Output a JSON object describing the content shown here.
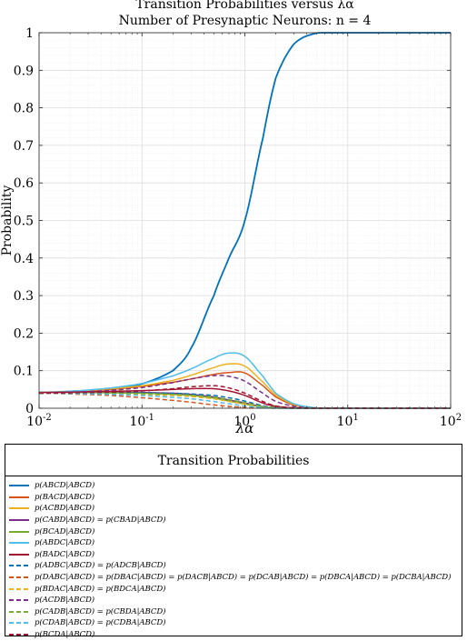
{
  "chart_data": {
    "type": "line",
    "title": "Transition Probabilities versus λα",
    "subtitle": "Number of Presynaptic Neurons: n = 4",
    "xlabel": "λα",
    "ylabel": "Probability",
    "xscale": "log",
    "xlim": [
      0.01,
      100
    ],
    "ylim": [
      0,
      1
    ],
    "x_ticks": [
      0.01,
      0.1,
      1,
      10,
      100
    ],
    "x_tick_labels": [
      {
        "base": "10",
        "exp": "-2"
      },
      {
        "base": "10",
        "exp": "-1"
      },
      {
        "base": "10",
        "exp": "0"
      },
      {
        "base": "10",
        "exp": "1"
      },
      {
        "base": "10",
        "exp": "2"
      }
    ],
    "y_ticks": [
      0,
      0.1,
      0.2,
      0.3,
      0.4,
      0.5,
      0.6,
      0.7,
      0.8,
      0.9,
      1
    ],
    "y_tick_labels": [
      "0",
      "0.1",
      "0.2",
      "0.3",
      "0.4",
      "0.5",
      "0.6",
      "0.7",
      "0.8",
      "0.9",
      "1"
    ],
    "grid": true,
    "legend_position": "below the plot",
    "legend_title": "Transition Probabilities",
    "x": [
      0.01,
      0.02,
      0.05,
      0.1,
      0.2,
      0.3,
      0.5,
      0.7,
      1,
      1.5,
      2,
      3,
      5,
      10,
      100
    ],
    "series": [
      {
        "name": "p(ABCD|ABCD)",
        "color": "#0072BD",
        "style": "solid",
        "values": [
          0.042,
          0.045,
          0.052,
          0.065,
          0.1,
          0.16,
          0.3,
          0.4,
          0.5,
          0.72,
          0.88,
          0.97,
          0.999,
          1.0,
          1.0
        ]
      },
      {
        "name": "p(BACD|ABCD)",
        "color": "#D95319",
        "style": "solid",
        "values": [
          0.042,
          0.044,
          0.05,
          0.058,
          0.069,
          0.078,
          0.09,
          0.095,
          0.094,
          0.06,
          0.03,
          0.008,
          0.001,
          0,
          0
        ]
      },
      {
        "name": "p(ACBD|ABCD)",
        "color": "#EDB120",
        "style": "solid",
        "values": [
          0.042,
          0.045,
          0.052,
          0.06,
          0.074,
          0.088,
          0.108,
          0.118,
          0.112,
          0.07,
          0.035,
          0.01,
          0.001,
          0,
          0
        ]
      },
      {
        "name": "p(CABD|ABCD) = p(CBAD|ABCD)",
        "color": "#7E2F8E",
        "style": "solid",
        "values": [
          0.042,
          0.042,
          0.042,
          0.042,
          0.04,
          0.037,
          0.03,
          0.022,
          0.014,
          0.004,
          0.001,
          0,
          0,
          0,
          0
        ]
      },
      {
        "name": "p(BCAD|ABCD)",
        "color": "#77AC30",
        "style": "solid",
        "values": [
          0.042,
          0.042,
          0.041,
          0.04,
          0.037,
          0.034,
          0.027,
          0.019,
          0.011,
          0.003,
          0.001,
          0,
          0,
          0,
          0
        ]
      },
      {
        "name": "p(ABDC|ABCD)",
        "color": "#4DBEEE",
        "style": "solid",
        "values": [
          0.042,
          0.045,
          0.054,
          0.066,
          0.086,
          0.105,
          0.133,
          0.147,
          0.138,
          0.085,
          0.04,
          0.012,
          0.001,
          0,
          0
        ]
      },
      {
        "name": "p(BADC|ABCD)",
        "color": "#A2142F",
        "style": "solid",
        "values": [
          0.042,
          0.043,
          0.045,
          0.047,
          0.05,
          0.052,
          0.052,
          0.046,
          0.034,
          0.014,
          0.005,
          0.001,
          0,
          0,
          0
        ]
      },
      {
        "name": "p(ADBC|ABCD) = p(ADCB|ABCD)",
        "color": "#0072BD",
        "style": "dashed",
        "values": [
          0.04,
          0.041,
          0.041,
          0.041,
          0.04,
          0.038,
          0.034,
          0.028,
          0.019,
          0.007,
          0.002,
          0,
          0,
          0,
          0
        ]
      },
      {
        "name": "p(DABC|ABCD) = p(DBAC|ABCD) = p(DACB|ABCD) = p(DCAB|ABCD) = p(DBCA|ABCD) = p(DCBA|ABCD)",
        "color": "#D95319",
        "style": "dashed",
        "values": [
          0.04,
          0.038,
          0.034,
          0.028,
          0.021,
          0.016,
          0.009,
          0.005,
          0.002,
          0.001,
          0,
          0,
          0,
          0,
          0
        ]
      },
      {
        "name": "p(BDAC|ABCD) = p(BDCA|ABCD)",
        "color": "#EDB120",
        "style": "dashed",
        "values": [
          0.04,
          0.04,
          0.039,
          0.037,
          0.034,
          0.031,
          0.025,
          0.018,
          0.011,
          0.004,
          0.001,
          0,
          0,
          0,
          0
        ]
      },
      {
        "name": "p(ACDB|ABCD)",
        "color": "#7E2F8E",
        "style": "dashed",
        "values": [
          0.04,
          0.042,
          0.048,
          0.055,
          0.068,
          0.078,
          0.087,
          0.085,
          0.072,
          0.04,
          0.018,
          0.005,
          0,
          0,
          0
        ]
      },
      {
        "name": "p(CADB|ABCD) = p(CBDA|ABCD)",
        "color": "#77AC30",
        "style": "dashed",
        "values": [
          0.04,
          0.04,
          0.04,
          0.039,
          0.037,
          0.035,
          0.03,
          0.023,
          0.015,
          0.005,
          0.002,
          0,
          0,
          0,
          0
        ]
      },
      {
        "name": "p(CDAB|ABCD) = p(CDBA|ABCD)",
        "color": "#4DBEEE",
        "style": "dashed",
        "values": [
          0.04,
          0.039,
          0.037,
          0.034,
          0.029,
          0.025,
          0.018,
          0.012,
          0.006,
          0.002,
          0,
          0,
          0,
          0,
          0
        ]
      },
      {
        "name": "p(BCDA|ABCD)",
        "color": "#A2142F",
        "style": "dashed",
        "values": [
          0.04,
          0.041,
          0.043,
          0.046,
          0.052,
          0.057,
          0.06,
          0.054,
          0.04,
          0.018,
          0.006,
          0.001,
          0,
          0,
          0
        ]
      }
    ]
  }
}
